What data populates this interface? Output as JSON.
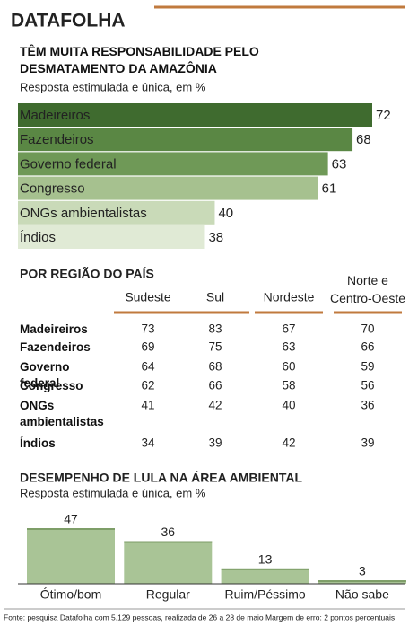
{
  "brand": "DATAFOLHA",
  "chart_data": [
    {
      "type": "hbar",
      "title": "TÊM MUITA RESPONSABILIDADE PELO DESMATAMENTO DA AMAZÔNIA",
      "subtitle": "Resposta estimulada e única, em %",
      "categories": [
        "Madeireiros",
        "Fazendeiros",
        "Governo federal",
        "Congresso",
        "ONGs ambientalistas",
        "Índios"
      ],
      "values": [
        72,
        68,
        63,
        61,
        40,
        38
      ],
      "colors": [
        "#3f6b2f",
        "#5a8744",
        "#6f9957",
        "#a6c18f",
        "#c9dab8",
        "#e0eAd5"
      ]
    },
    {
      "type": "bar",
      "title": "DESEMPENHO DE LULA NA ÁREA AMBIENTAL",
      "subtitle": "Resposta estimulada e única, em %",
      "categories": [
        "Ótimo/bom",
        "Regular",
        "Ruim/Péssimo",
        "Não sabe"
      ],
      "values": [
        47,
        36,
        13,
        3
      ],
      "color": "#a9c496"
    }
  ],
  "table": {
    "title": "POR REGIÃO DO PAÍS",
    "columns": [
      "Sudeste",
      "Sul",
      "Nordeste",
      "Norte e Centro-Oeste"
    ],
    "rows": [
      [
        "Madeireiros",
        73,
        83,
        67,
        70
      ],
      [
        "Fazendeiros",
        69,
        75,
        63,
        66
      ],
      [
        "Governo federal",
        64,
        68,
        60,
        59
      ],
      [
        "Congresso",
        62,
        66,
        58,
        56
      ],
      [
        "ONGs ambientalistas",
        41,
        42,
        40,
        36
      ],
      [
        "Índios",
        34,
        39,
        42,
        39
      ]
    ]
  },
  "footnote": "Fonte: pesquisa Datafolha com 5.129 pessoas, realizada de 26 a 28 de maio   Margem de erro: 2 pontos percentuais"
}
